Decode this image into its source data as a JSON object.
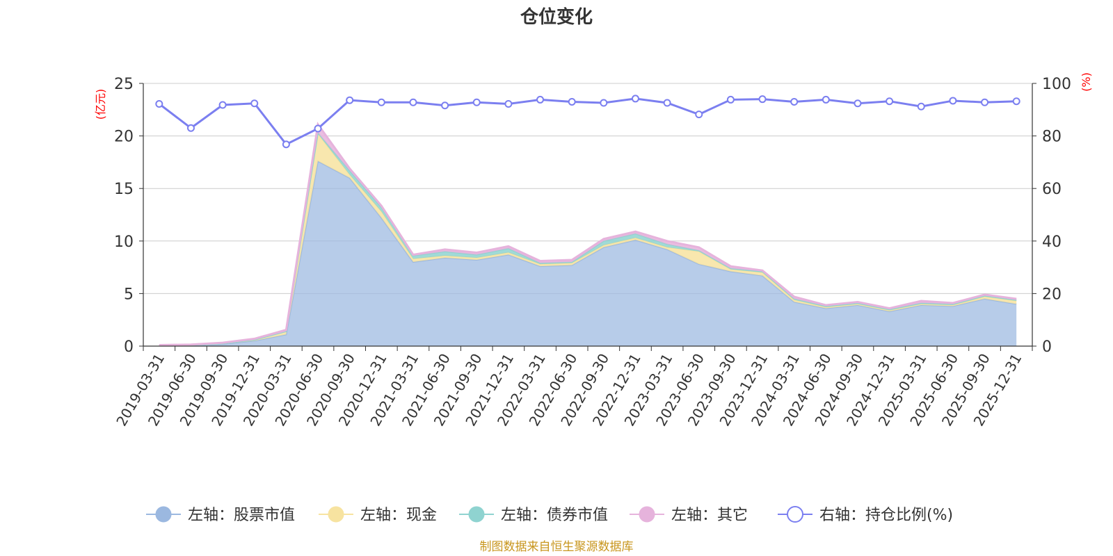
{
  "source_note": "制图数据来自恒生聚源数据库",
  "colors": {
    "stock": "#9bb8e0",
    "cash": "#f7e3a0",
    "bond": "#8fd3d0",
    "other": "#e6b3dc",
    "ratio": "#7b7ff0",
    "grid": "#cccccc",
    "axis": "#333333",
    "unit": "#ff0000",
    "source": "#c8961e"
  },
  "chart_data": {
    "type": "area",
    "title": "仓位变化",
    "left_unit": "(亿元)",
    "right_unit": "(%)",
    "ylim_left": [
      0,
      25
    ],
    "yticks_left": [
      "0",
      "5",
      "10",
      "15",
      "20",
      "25"
    ],
    "ylim_right": [
      0,
      100
    ],
    "yticks_right": [
      "0",
      "20",
      "40",
      "60",
      "80",
      "100"
    ],
    "grid": true,
    "legend_position": "bottom",
    "x": [
      "2019-03-31",
      "2019-06-30",
      "2019-09-30",
      "2019-12-31",
      "2020-03-31",
      "2020-06-30",
      "2020-09-30",
      "2020-12-31",
      "2021-03-31",
      "2021-06-30",
      "2021-09-30",
      "2021-12-31",
      "2022-03-31",
      "2022-06-30",
      "2022-09-30",
      "2022-12-31",
      "2023-03-31",
      "2023-06-30",
      "2023-09-30",
      "2023-12-31",
      "2024-03-31",
      "2024-06-30",
      "2024-09-30",
      "2024-12-31",
      "2025-03-31",
      "2025-06-30",
      "2025-09-30",
      "2025-12-31"
    ],
    "series": [
      {
        "name": "左轴：股票市值",
        "axis": "left",
        "kind": "stacked-area",
        "values": [
          0.05,
          0.08,
          0.2,
          0.5,
          1.1,
          17.6,
          16.0,
          12.2,
          8.0,
          8.4,
          8.2,
          8.7,
          7.6,
          7.7,
          9.4,
          10.1,
          9.2,
          7.8,
          7.1,
          6.7,
          4.2,
          3.6,
          3.9,
          3.3,
          3.9,
          3.8,
          4.5,
          4.0
        ]
      },
      {
        "name": "左轴：现金",
        "axis": "left",
        "kind": "stacked-area",
        "values": [
          0.02,
          0.03,
          0.05,
          0.1,
          0.3,
          2.6,
          0.3,
          0.6,
          0.3,
          0.2,
          0.2,
          0.2,
          0.2,
          0.2,
          0.2,
          0.2,
          0.2,
          1.2,
          0.2,
          0.3,
          0.2,
          0.1,
          0.1,
          0.1,
          0.1,
          0.1,
          0.2,
          0.3
        ]
      },
      {
        "name": "左轴：债券市值",
        "axis": "left",
        "kind": "stacked-area",
        "values": [
          0,
          0,
          0,
          0,
          0,
          0.1,
          0.4,
          0.4,
          0.3,
          0.4,
          0.3,
          0.4,
          0.1,
          0.1,
          0.4,
          0.4,
          0.3,
          0.1,
          0.1,
          0.1,
          0.1,
          0.1,
          0.1,
          0.1,
          0.1,
          0.1,
          0.1,
          0.1
        ]
      },
      {
        "name": "左轴：其它",
        "axis": "left",
        "kind": "stacked-area",
        "values": [
          0.03,
          0.04,
          0.07,
          0.1,
          0.15,
          0.8,
          0.2,
          0.15,
          0.1,
          0.2,
          0.2,
          0.2,
          0.2,
          0.2,
          0.2,
          0.2,
          0.3,
          0.3,
          0.2,
          0.1,
          0.2,
          0.1,
          0.1,
          0.1,
          0.2,
          0.1,
          0.1,
          0.1
        ]
      },
      {
        "name": "右轴：持仓比例(%)",
        "axis": "right",
        "kind": "line",
        "values": [
          92.2,
          83.0,
          91.8,
          92.4,
          76.8,
          82.8,
          93.6,
          92.8,
          92.8,
          91.6,
          92.8,
          92.2,
          93.8,
          93.0,
          92.6,
          94.2,
          92.6,
          88.2,
          93.8,
          94.0,
          93.0,
          93.8,
          92.4,
          93.2,
          91.2,
          93.4,
          92.8,
          93.2
        ]
      }
    ]
  }
}
